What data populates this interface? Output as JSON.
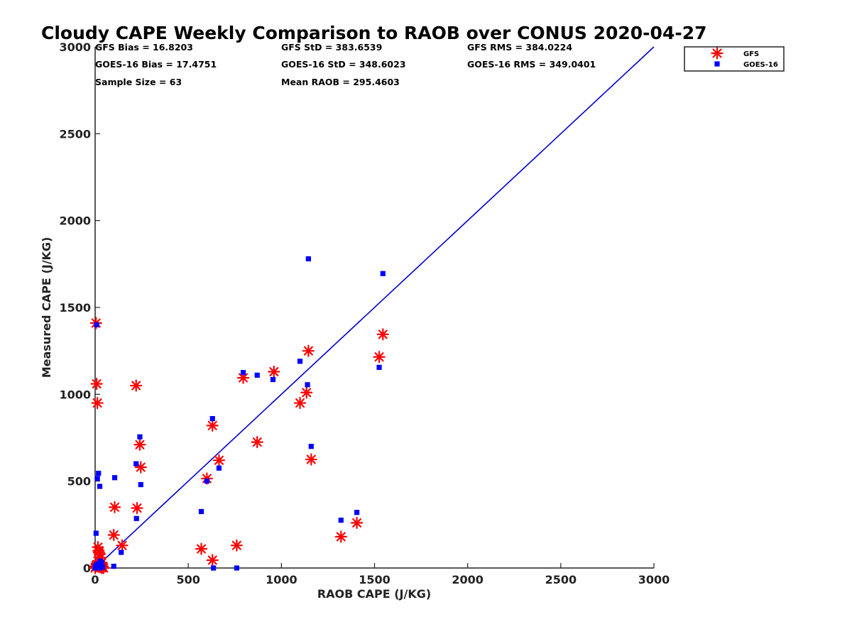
{
  "chart_data": {
    "type": "scatter",
    "title": "Cloudy CAPE Weekly Comparison to RAOB over CONUS 2020-04-27",
    "xlabel": "RAOB CAPE (J/KG)",
    "ylabel": "Measured CAPE (J/KG)",
    "xlim": [
      0,
      3000
    ],
    "ylim": [
      0,
      3000
    ],
    "xticks": [
      0,
      500,
      1000,
      1500,
      2000,
      2500,
      3000
    ],
    "yticks": [
      0,
      500,
      1000,
      1500,
      2000,
      2500,
      3000
    ],
    "xtick_labels": [
      "0",
      "500",
      "1000",
      "1500",
      "2000",
      "2500",
      "3000"
    ],
    "ytick_labels": [
      "0",
      "500",
      "1000",
      "1500",
      "2000",
      "2500",
      "3000"
    ],
    "grid": false,
    "legend_position": "top-right",
    "reference_line": {
      "x": [
        0,
        3000
      ],
      "y": [
        0,
        3000
      ],
      "color": "#0000cc"
    },
    "stats": {
      "gfs_bias": "GFS Bias = 16.8203",
      "gfs_std": "GFS StD = 383.6539",
      "gfs_rms": "GFS RMS = 384.0224",
      "goes_bias": "GOES-16 Bias = 17.4751",
      "goes_std": "GOES-16 StD = 348.6023",
      "goes_rms": "GOES-16 RMS = 349.0401",
      "sample_size": "Sample Size = 63",
      "mean_raob": "Mean RAOB = 295.4603"
    },
    "series": [
      {
        "name": "GFS",
        "marker": "asterisk",
        "color": "#ff0000",
        "x": [
          5,
          8,
          12,
          15,
          18,
          20,
          25,
          30,
          35,
          40,
          45,
          0,
          2,
          5,
          10,
          15,
          20,
          25,
          30,
          35,
          40,
          100,
          105,
          145,
          220,
          225,
          240,
          245,
          570,
          600,
          630,
          630,
          665,
          760,
          795,
          870,
          960,
          1100,
          1135,
          1145,
          1160,
          1320,
          1405,
          1525,
          1545
        ],
        "y": [
          1410,
          1060,
          950,
          120,
          100,
          90,
          80,
          60,
          30,
          10,
          0,
          0,
          5,
          10,
          20,
          40,
          15,
          5,
          10,
          0,
          5,
          190,
          350,
          130,
          1050,
          345,
          710,
          580,
          110,
          515,
          820,
          45,
          620,
          130,
          1095,
          725,
          1130,
          950,
          1010,
          1250,
          625,
          180,
          260,
          1215,
          1345
        ]
      },
      {
        "name": "GOES-16",
        "marker": "square",
        "color": "#0000ff",
        "x": [
          5,
          8,
          12,
          18,
          25,
          28,
          35,
          0,
          3,
          6,
          10,
          15,
          20,
          25,
          30,
          40,
          100,
          105,
          140,
          220,
          222,
          240,
          245,
          570,
          600,
          630,
          635,
          665,
          760,
          795,
          870,
          955,
          1100,
          1140,
          1145,
          1160,
          1320,
          1405,
          1525,
          1545
        ],
        "y": [
          200,
          1400,
          515,
          545,
          470,
          40,
          30,
          0,
          10,
          20,
          5,
          15,
          25,
          0,
          10,
          5,
          10,
          520,
          90,
          600,
          285,
          755,
          480,
          325,
          500,
          860,
          0,
          575,
          0,
          1125,
          1110,
          1085,
          1190,
          1055,
          1780,
          700,
          275,
          320,
          1155,
          1695
        ]
      }
    ]
  }
}
